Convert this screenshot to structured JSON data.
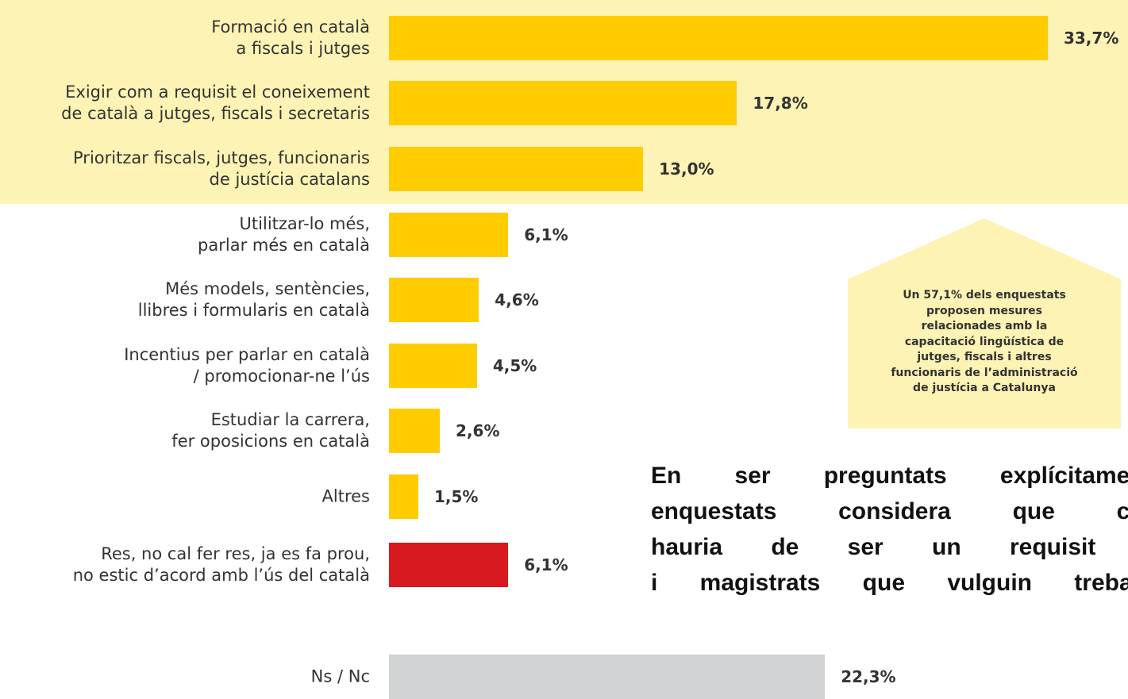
{
  "chart_data": {
    "type": "bar",
    "orientation": "horizontal",
    "categories": [
      "Formació en català\na fiscals i jutges",
      "Exigir com a requisit el coneixement\nde català a jutges, fiscals i secretaris",
      "Prioritzar fiscals, jutges, funcionaris\nde justícia catalans",
      "Utilitzar-lo més,\nparlar més en català",
      "Més models, sentències,\nllibres i formularis en català",
      "Incentius per parlar en català\n/ promocionar-ne l’ús",
      "Estudiar la carrera,\nfer oposicions en català",
      "Altres",
      "Res, no cal fer res, ja es fa prou,\nno estic d’acord amb l’ús del català",
      "Ns / Nc"
    ],
    "values": [
      33.7,
      17.8,
      13.0,
      6.1,
      4.6,
      4.5,
      2.6,
      1.5,
      6.1,
      22.3
    ],
    "value_labels": [
      "33,7%",
      "17,8%",
      "13,0%",
      "6,1%",
      "4,6%",
      "4,5%",
      "2,6%",
      "1,5%",
      "6,1%",
      "22,3%"
    ],
    "colors": [
      "#ffcc00",
      "#ffcc00",
      "#ffcc00",
      "#ffcc00",
      "#ffcc00",
      "#ffcc00",
      "#ffcc00",
      "#ffcc00",
      "#d71920",
      "#d1d2d4"
    ],
    "xlim": [
      0,
      35
    ],
    "callout": [
      "Un 57,1% dels enquestats",
      "proposen mesures",
      "relacionades amb la",
      "capacitació lingüística de",
      "jutges, fiscals i altres",
      "funcionaris de l’administració",
      "de justícia a Catalunya"
    ],
    "paragraph": [
      "En ser preguntats explícitament,",
      "enquestats considera que con",
      "hauria de ser un requisit p",
      "i magistrats que vulguin treballa"
    ]
  }
}
